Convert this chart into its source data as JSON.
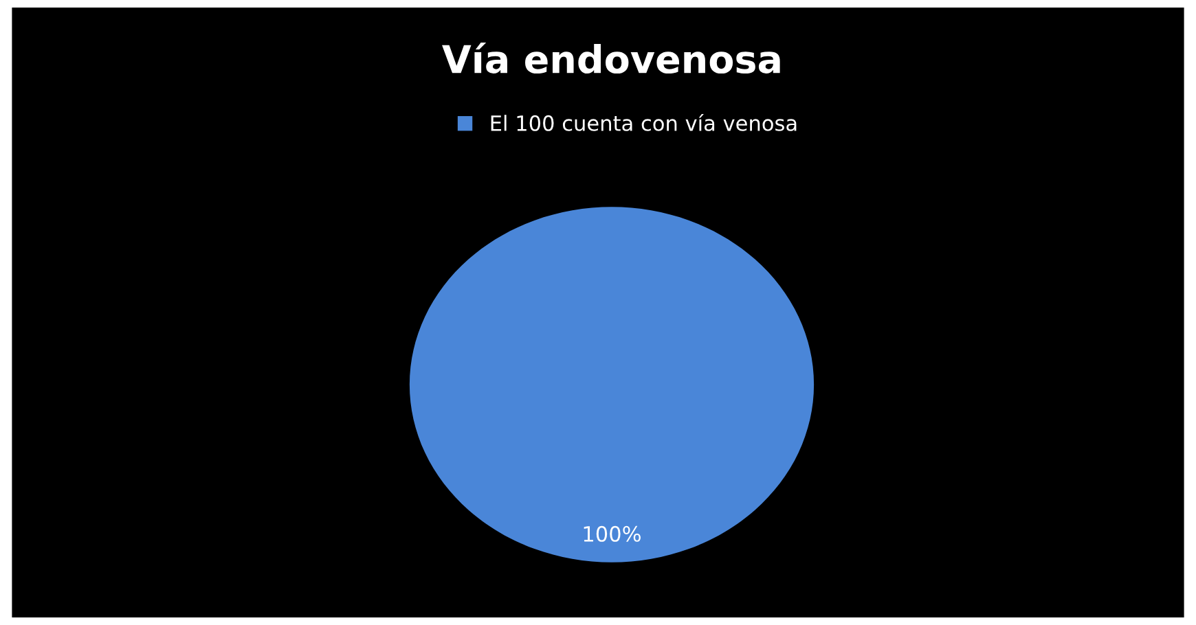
{
  "chart_data": {
    "type": "pie",
    "title": "Vía endovenosa",
    "categories": [
      "El 100 cuenta con vía venosa"
    ],
    "values": [
      100
    ],
    "colors": [
      "#4a86d8"
    ],
    "value_labels": [
      "100%"
    ],
    "legend": "top"
  }
}
